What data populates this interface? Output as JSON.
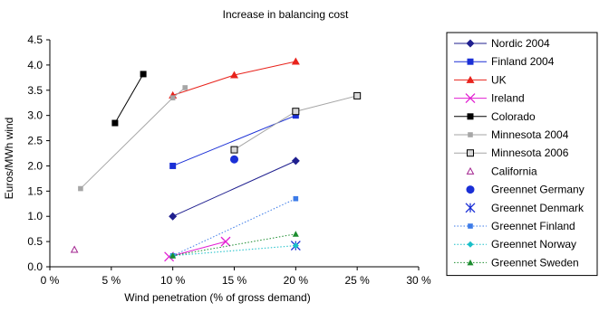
{
  "chart_data": {
    "type": "scatter",
    "title": "Increase in balancing cost",
    "xlabel": "Wind penetration (% of gross demand)",
    "ylabel": "Euros/MWh wind",
    "xlim": [
      0,
      30
    ],
    "ylim": [
      0,
      4.5
    ],
    "x_ticks": [
      0,
      5,
      10,
      15,
      20,
      25,
      30
    ],
    "x_tick_labels": [
      "0 %",
      "5 %",
      "10 %",
      "15 %",
      "20 %",
      "25 %",
      "30 %"
    ],
    "y_ticks": [
      0,
      0.5,
      1.0,
      1.5,
      2.0,
      2.5,
      3.0,
      3.5,
      4.0,
      4.5
    ],
    "y_tick_labels": [
      "0.0",
      "0.5",
      "1.0",
      "1.5",
      "2.0",
      "2.5",
      "3.0",
      "3.5",
      "4.0",
      "4.5"
    ],
    "grid": false,
    "legend_position": "right",
    "series": [
      {
        "name": "Nordic 2004",
        "color": "#1f1f8f",
        "marker": "diamond",
        "line": "solid",
        "points": [
          [
            10,
            1.0
          ],
          [
            20,
            2.1
          ]
        ]
      },
      {
        "name": "Finland 2004",
        "color": "#1a2fd6",
        "marker": "square",
        "line": "solid",
        "points": [
          [
            10,
            2.0
          ],
          [
            20,
            3.0
          ]
        ]
      },
      {
        "name": "UK",
        "color": "#e8231c",
        "marker": "triangle",
        "line": "solid",
        "points": [
          [
            10,
            3.4
          ],
          [
            15,
            3.8
          ],
          [
            20,
            4.07
          ]
        ]
      },
      {
        "name": "Ireland",
        "color": "#e21fd2",
        "marker": "x",
        "line": "solid",
        "points": [
          [
            9.7,
            0.2
          ],
          [
            14.3,
            0.5
          ]
        ]
      },
      {
        "name": "Colorado",
        "color": "#000000",
        "marker": "square",
        "line": "solid",
        "points": [
          [
            5.3,
            2.85
          ],
          [
            7.6,
            3.82
          ]
        ]
      },
      {
        "name": "Minnesota 2004",
        "color": "#a6a6a6",
        "marker": "square-small",
        "line": "solid",
        "points": [
          [
            2.5,
            1.55
          ],
          [
            10,
            3.35
          ],
          [
            11,
            3.55
          ]
        ]
      },
      {
        "name": "Minnesota 2006",
        "color": "#a6a6a6",
        "marker": "square-open",
        "line": "solid",
        "points": [
          [
            15,
            2.32
          ],
          [
            20,
            3.08
          ],
          [
            25,
            3.39
          ]
        ]
      },
      {
        "name": "California",
        "color": "#a2238f",
        "marker": "triangle-open",
        "line": "none",
        "points": [
          [
            2,
            0.34
          ]
        ]
      },
      {
        "name": "Greennet Germany",
        "color": "#1a2fd6",
        "marker": "circle",
        "line": "none",
        "points": [
          [
            15,
            2.13
          ]
        ]
      },
      {
        "name": "Greennet Denmark",
        "color": "#1a2fd6",
        "marker": "star",
        "line": "none",
        "points": [
          [
            20,
            0.42
          ]
        ]
      },
      {
        "name": "Greennet Finland",
        "color": "#3c7be8",
        "marker": "square-small",
        "line": "dotted",
        "points": [
          [
            10,
            0.22
          ],
          [
            20,
            1.35
          ]
        ]
      },
      {
        "name": "Greennet Norway",
        "color": "#18bfc8",
        "marker": "diamond-small",
        "line": "dotted",
        "points": [
          [
            10,
            0.22
          ],
          [
            20,
            0.42
          ]
        ]
      },
      {
        "name": "Greennet Sweden",
        "color": "#1c8c2f",
        "marker": "triangle-small",
        "line": "dotted",
        "points": [
          [
            10,
            0.22
          ],
          [
            20,
            0.65
          ]
        ]
      }
    ]
  }
}
